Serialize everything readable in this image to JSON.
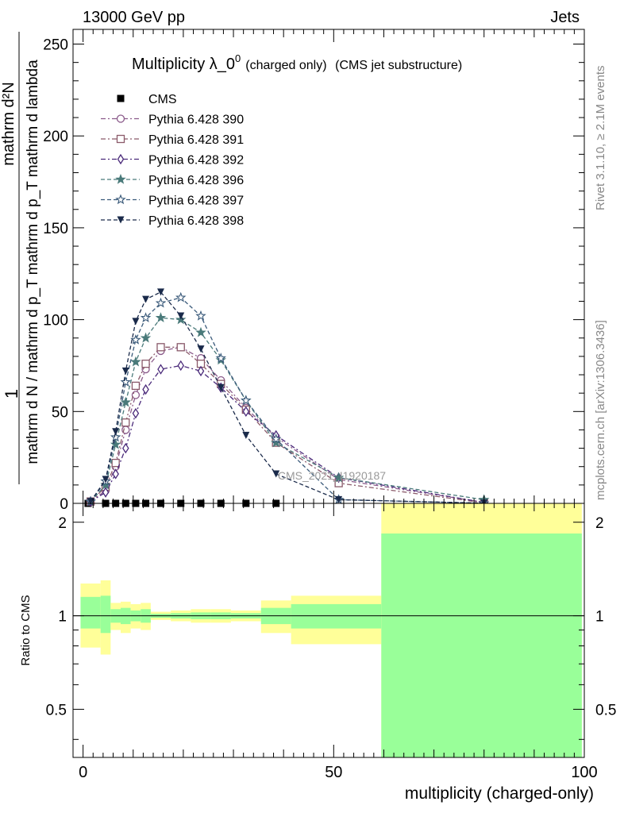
{
  "header": {
    "left": "13000 GeV pp",
    "right": "Jets"
  },
  "side_labels": {
    "rivet": "Rivet 3.1.10, ≥ 2.1M events",
    "mcplots": "mcplots.cern.ch [arXiv:1306.3436]"
  },
  "watermark": "CMS_2021_I1920187",
  "chart_data": [
    {
      "type": "line",
      "title": "Multiplicity λ_0",
      "title_superscript": "0",
      "title_suffix_1": "(charged only)",
      "title_suffix_2": "(CMS jet substructure)",
      "ylabel_top": "1",
      "ylabel_numerator": "mathrm d²N",
      "ylabel_denominator": "mathrm d N / mathrm d p_T mathrm d p_T mathrm d lambda",
      "xlim": [
        -2,
        100
      ],
      "ylim": [
        0,
        258
      ],
      "yticks": [
        0,
        50,
        100,
        150,
        200,
        250
      ],
      "legend": "top-left",
      "series": [
        {
          "name": "CMS",
          "color": "#000000",
          "marker": "square",
          "x": [
            1,
            4.5,
            6.5,
            8.5,
            10.5,
            12.5,
            15.5,
            19.5,
            23.5,
            27.5,
            32.5,
            38.5
          ],
          "y": [
            0,
            0,
            0,
            0,
            0,
            0,
            0,
            0,
            0,
            0,
            0,
            0
          ]
        },
        {
          "name": "Pythia 6.428 390",
          "color": "#8a5a8a",
          "marker": "circle",
          "dash": "6,3,2,3",
          "x": [
            1.5,
            4.5,
            6.5,
            8.5,
            10.5,
            12.5,
            15.5,
            19.5,
            23.5,
            27.5,
            32.5,
            38.5,
            51,
            80
          ],
          "y": [
            1,
            7,
            20,
            40,
            59,
            73,
            83,
            85,
            79,
            67,
            52,
            36,
            13,
            0.5
          ]
        },
        {
          "name": "Pythia 6.428 391",
          "color": "#8a5a6a",
          "marker": "square-open",
          "dash": "6,3,2,3",
          "x": [
            1.5,
            4.5,
            6.5,
            8.5,
            10.5,
            12.5,
            15.5,
            19.5,
            23.5,
            27.5,
            32.5,
            38.5,
            51,
            80
          ],
          "y": [
            1,
            9,
            22,
            44,
            64,
            76,
            85,
            85,
            76,
            65,
            51,
            33,
            11,
            0.3
          ]
        },
        {
          "name": "Pythia 6.428 392",
          "color": "#4a2a7a",
          "marker": "diamond-open",
          "dash": "6,3,2,3",
          "x": [
            1.5,
            4.5,
            6.5,
            8.5,
            10.5,
            12.5,
            15.5,
            19.5,
            23.5,
            27.5,
            32.5,
            38.5,
            51,
            80
          ],
          "y": [
            1,
            6,
            16,
            30,
            49,
            62,
            73,
            75,
            72,
            63,
            50,
            37,
            14,
            0.5
          ]
        },
        {
          "name": "Pythia 6.428 396",
          "color": "#4a7a7a",
          "marker": "star",
          "dash": "5,3",
          "x": [
            1.5,
            4.5,
            6.5,
            8.5,
            10.5,
            12.5,
            15.5,
            19.5,
            23.5,
            27.5,
            32.5,
            38.5,
            51,
            80
          ],
          "y": [
            1,
            10,
            32,
            55,
            77,
            90,
            101,
            100,
            93,
            78,
            56,
            33,
            14,
            2
          ]
        },
        {
          "name": "Pythia 6.428 397",
          "color": "#3a5a7a",
          "marker": "star-open",
          "dash": "5,3",
          "x": [
            1.5,
            4.5,
            6.5,
            8.5,
            10.5,
            12.5,
            15.5,
            19.5,
            23.5,
            27.5,
            32.5,
            38.5,
            51,
            80
          ],
          "y": [
            1,
            12,
            36,
            66,
            89,
            101,
            109,
            112,
            102,
            79,
            56,
            35,
            2,
            0.1
          ]
        },
        {
          "name": "Pythia 6.428 398",
          "color": "#1a2a4a",
          "marker": "triangle-down",
          "dash": "5,3",
          "x": [
            1.5,
            4.5,
            6.5,
            8.5,
            10.5,
            12.5,
            15.5,
            19.5,
            23.5,
            27.5,
            32.5,
            38.5,
            51,
            80
          ],
          "y": [
            1,
            13,
            39,
            72,
            99,
            111,
            115,
            102,
            84,
            63,
            37,
            16,
            2,
            0.1
          ]
        }
      ]
    },
    {
      "type": "area",
      "ylabel": "Ratio to CMS",
      "xlabel": "multiplicity (charged-only)",
      "xlim": [
        -2,
        100
      ],
      "xticks": [
        0,
        50,
        100
      ],
      "ylim": [
        0.35,
        2.3
      ],
      "yticks": [
        0.5,
        1,
        2
      ],
      "reference_line": 1,
      "bands": {
        "colors": {
          "outer": "#ffff99",
          "inner": "#99ff99"
        },
        "bins": [
          {
            "x0": -0.5,
            "x1": 3.5,
            "outer_lo": 0.79,
            "outer_hi": 1.27,
            "inner_lo": 0.91,
            "inner_hi": 1.15
          },
          {
            "x0": 3.5,
            "x1": 5.5,
            "outer_lo": 0.75,
            "outer_hi": 1.3,
            "inner_lo": 0.88,
            "inner_hi": 1.16
          },
          {
            "x0": 5.5,
            "x1": 7.5,
            "outer_lo": 0.9,
            "outer_hi": 1.1,
            "inner_lo": 0.95,
            "inner_hi": 1.05
          },
          {
            "x0": 7.5,
            "x1": 9.5,
            "outer_lo": 0.88,
            "outer_hi": 1.11,
            "inner_lo": 0.94,
            "inner_hi": 1.06
          },
          {
            "x0": 9.5,
            "x1": 11.5,
            "outer_lo": 0.91,
            "outer_hi": 1.09,
            "inner_lo": 0.96,
            "inner_hi": 1.04
          },
          {
            "x0": 11.5,
            "x1": 13.5,
            "outer_lo": 0.9,
            "outer_hi": 1.1,
            "inner_lo": 0.95,
            "inner_hi": 1.05
          },
          {
            "x0": 13.5,
            "x1": 17.5,
            "outer_lo": 0.97,
            "outer_hi": 1.03,
            "inner_lo": 0.985,
            "inner_hi": 1.015
          },
          {
            "x0": 17.5,
            "x1": 21.5,
            "outer_lo": 0.96,
            "outer_hi": 1.04,
            "inner_lo": 0.98,
            "inner_hi": 1.02
          },
          {
            "x0": 21.5,
            "x1": 25.5,
            "outer_lo": 0.95,
            "outer_hi": 1.05,
            "inner_lo": 0.975,
            "inner_hi": 1.025
          },
          {
            "x0": 25.5,
            "x1": 29.5,
            "outer_lo": 0.95,
            "outer_hi": 1.05,
            "inner_lo": 0.975,
            "inner_hi": 1.025
          },
          {
            "x0": 29.5,
            "x1": 35.5,
            "outer_lo": 0.96,
            "outer_hi": 1.04,
            "inner_lo": 0.98,
            "inner_hi": 1.02
          },
          {
            "x0": 35.5,
            "x1": 41.5,
            "outer_lo": 0.88,
            "outer_hi": 1.12,
            "inner_lo": 0.94,
            "inner_hi": 1.06
          },
          {
            "x0": 41.5,
            "x1": 59.5,
            "outer_lo": 0.81,
            "outer_hi": 1.16,
            "inner_lo": 0.91,
            "inner_hi": 1.09
          },
          {
            "x0": 59.5,
            "x1": 99.5,
            "outer_lo": 0.35,
            "outer_hi": 2.3,
            "inner_lo": 0.35,
            "inner_hi": 1.84
          }
        ]
      }
    }
  ]
}
